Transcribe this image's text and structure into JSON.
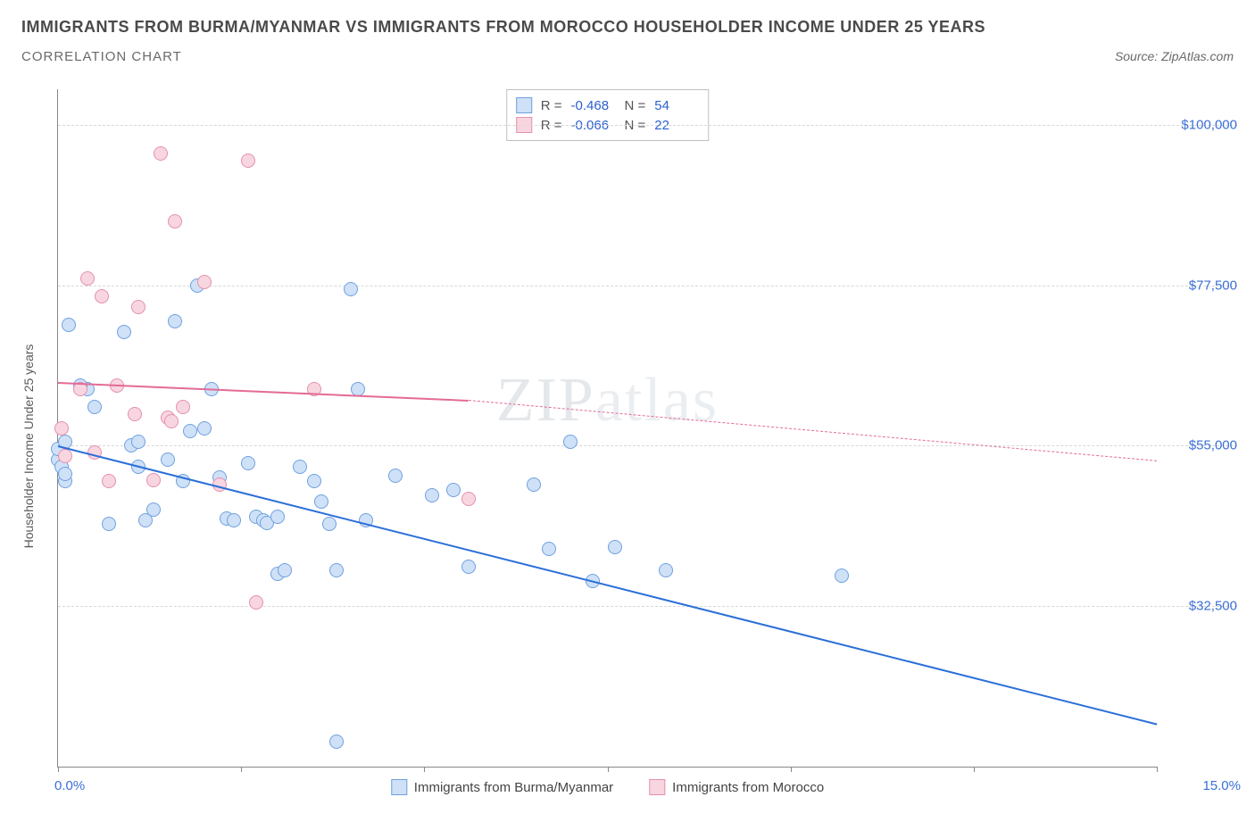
{
  "header": {
    "title": "IMMIGRANTS FROM BURMA/MYANMAR VS IMMIGRANTS FROM MOROCCO HOUSEHOLDER INCOME UNDER 25 YEARS",
    "subtitle": "CORRELATION CHART",
    "source_prefix": "Source: ",
    "source_name": "ZipAtlas.com"
  },
  "watermark": {
    "bold": "ZIP",
    "thin": "atlas"
  },
  "chart": {
    "type": "scatter",
    "x_axis": {
      "min": 0.0,
      "max": 15.0,
      "min_label": "0.0%",
      "max_label": "15.0%",
      "ticks": [
        0,
        2.5,
        5.0,
        7.5,
        10.0,
        12.5,
        15.0
      ]
    },
    "y_axis": {
      "title": "Householder Income Under 25 years",
      "min": 10000,
      "max": 105000,
      "gridlines": [
        32500,
        55000,
        77500,
        100000
      ],
      "grid_labels": [
        "$32,500",
        "$55,000",
        "$77,500",
        "$100,000"
      ]
    },
    "background_color": "#ffffff",
    "grid_color": "#d8d8d8",
    "axis_color": "#888888",
    "label_color": "#3b6fd6",
    "marker_radius": 8,
    "marker_border": 1,
    "series": [
      {
        "key": "burma",
        "label": "Immigrants from Burma/Myanmar",
        "fill": "#cfe1f7",
        "stroke": "#6fa0e0",
        "line_color": "#2b6fd8",
        "R": "-0.468",
        "N": "54",
        "trend": {
          "x1": 0.0,
          "y1": 55000,
          "x2": 15.0,
          "y2": 16000,
          "dash_from_x": 15.0
        },
        "points": [
          [
            0.0,
            53000
          ],
          [
            0.0,
            54500
          ],
          [
            0.05,
            52000
          ],
          [
            0.1,
            55500
          ],
          [
            0.1,
            50000
          ],
          [
            0.1,
            51000
          ],
          [
            0.15,
            72000
          ],
          [
            0.4,
            63000
          ],
          [
            0.5,
            60500
          ],
          [
            0.7,
            44000
          ],
          [
            0.9,
            71000
          ],
          [
            1.0,
            55000
          ],
          [
            1.1,
            55500
          ],
          [
            1.1,
            52000
          ],
          [
            1.3,
            46000
          ],
          [
            1.5,
            53000
          ],
          [
            1.6,
            72500
          ],
          [
            1.7,
            50000
          ],
          [
            1.8,
            57000
          ],
          [
            1.9,
            77500
          ],
          [
            2.0,
            57500
          ],
          [
            2.2,
            50500
          ],
          [
            2.3,
            44800
          ],
          [
            2.4,
            44500
          ],
          [
            2.6,
            52500
          ],
          [
            2.7,
            45000
          ],
          [
            2.8,
            44500
          ],
          [
            2.85,
            44200
          ],
          [
            3.0,
            45000
          ],
          [
            3.0,
            37000
          ],
          [
            3.1,
            37500
          ],
          [
            3.3,
            52000
          ],
          [
            3.5,
            50000
          ],
          [
            3.6,
            47200
          ],
          [
            3.7,
            44000
          ],
          [
            3.8,
            37500
          ],
          [
            3.8,
            13500
          ],
          [
            4.0,
            77000
          ],
          [
            4.1,
            63000
          ],
          [
            4.2,
            44500
          ],
          [
            4.6,
            50800
          ],
          [
            5.1,
            48000
          ],
          [
            5.4,
            48800
          ],
          [
            5.6,
            38000
          ],
          [
            6.5,
            49500
          ],
          [
            6.7,
            40500
          ],
          [
            7.0,
            55500
          ],
          [
            7.3,
            36000
          ],
          [
            7.6,
            40800
          ],
          [
            8.3,
            37500
          ],
          [
            10.7,
            36800
          ],
          [
            0.3,
            63500
          ],
          [
            1.2,
            44500
          ],
          [
            2.1,
            63000
          ]
        ]
      },
      {
        "key": "morocco",
        "label": "Immigrants from Morocco",
        "fill": "#f8d6e0",
        "stroke": "#e58fb0",
        "line_color": "#e36b96",
        "R": "-0.066",
        "N": "22",
        "trend": {
          "x1": 0.0,
          "y1": 64000,
          "x2": 5.6,
          "y2": 61500,
          "dash_from_x": 5.6,
          "dash_x2": 15.0,
          "dash_y2": 53000
        },
        "points": [
          [
            0.05,
            57500
          ],
          [
            0.1,
            53500
          ],
          [
            0.3,
            63000
          ],
          [
            0.4,
            78500
          ],
          [
            0.5,
            54000
          ],
          [
            0.6,
            76000
          ],
          [
            0.7,
            50000
          ],
          [
            0.8,
            63500
          ],
          [
            1.05,
            59500
          ],
          [
            1.1,
            74500
          ],
          [
            1.3,
            50200
          ],
          [
            1.4,
            96000
          ],
          [
            1.5,
            59000
          ],
          [
            1.55,
            58500
          ],
          [
            1.6,
            86500
          ],
          [
            1.7,
            60500
          ],
          [
            2.0,
            78000
          ],
          [
            2.2,
            49500
          ],
          [
            2.6,
            95000
          ],
          [
            2.7,
            33000
          ],
          [
            3.5,
            62900
          ],
          [
            5.6,
            47500
          ]
        ]
      }
    ],
    "legend_stats_labels": {
      "R": "R =",
      "N": "N ="
    }
  }
}
